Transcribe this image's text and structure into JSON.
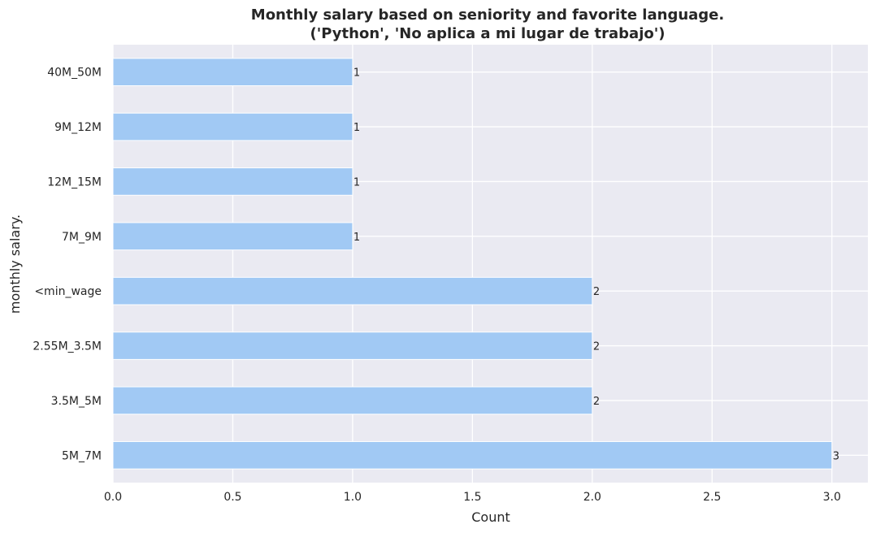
{
  "chart_data": {
    "type": "bar",
    "orientation": "horizontal",
    "title_line1": "Monthly salary based on seniority and favorite language.",
    "title_line2": "('Python', 'No aplica a mi lugar de trabajo')",
    "xlabel": "Count",
    "ylabel": "monthly salary.",
    "categories": [
      "40M_50M",
      "9M_12M",
      "12M_15M",
      "7M_9M",
      "<min_wage",
      "2.55M_3.5M",
      "3.5M_5M",
      "5M_7M"
    ],
    "values": [
      1,
      1,
      1,
      1,
      2,
      2,
      2,
      3
    ],
    "data_labels": [
      "1",
      "1",
      "1",
      "1",
      "2",
      "2",
      "2",
      "3"
    ],
    "xlim": [
      0,
      3.15
    ],
    "x_ticks": [
      0.0,
      0.5,
      1.0,
      1.5,
      2.0,
      2.5,
      3.0
    ],
    "x_tick_labels": [
      "0.0",
      "0.5",
      "1.0",
      "1.5",
      "2.0",
      "2.5",
      "3.0"
    ],
    "grid": true,
    "colors": {
      "bar": "#a1c9f4",
      "plot_background": "#eaeaf2",
      "grid": "#ffffff",
      "text": "#262626"
    }
  }
}
